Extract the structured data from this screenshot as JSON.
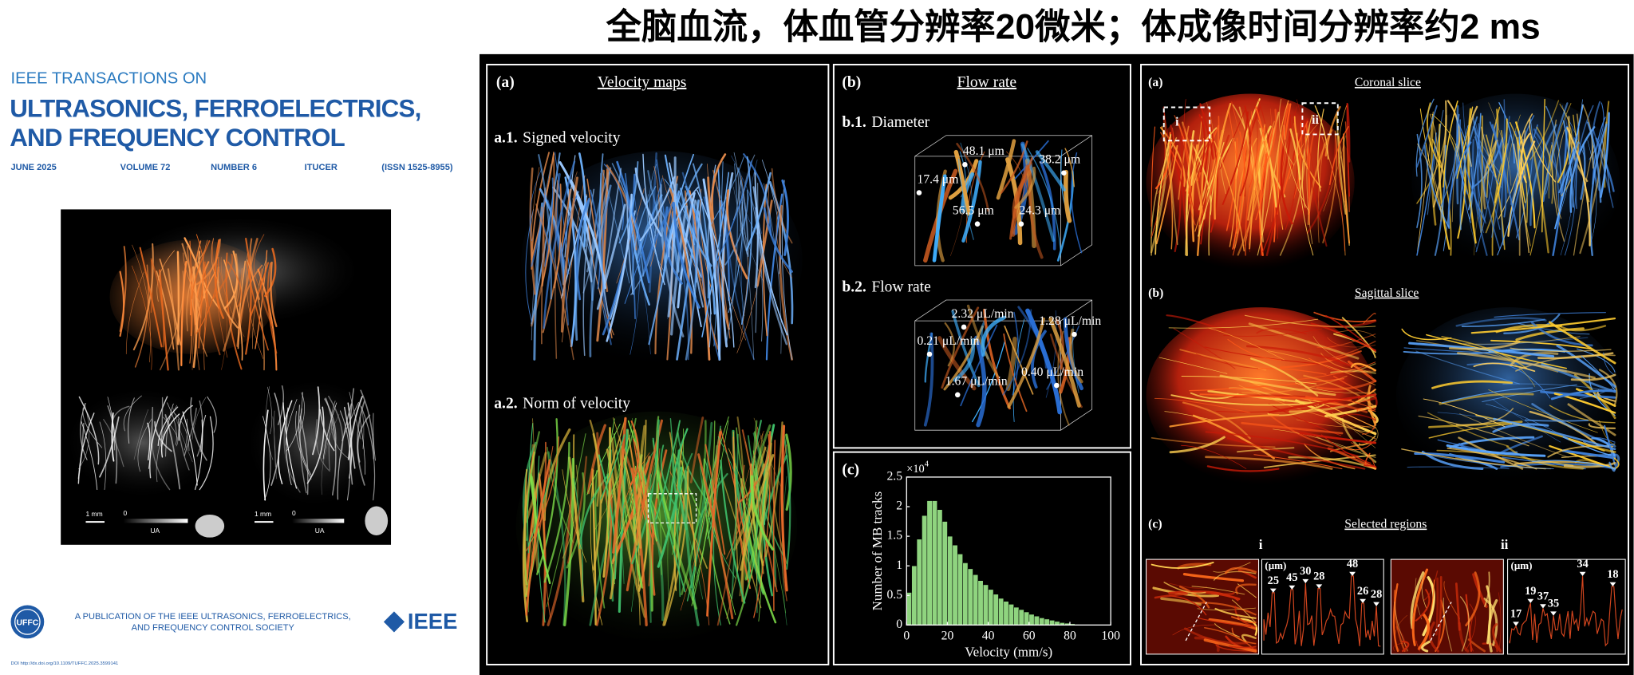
{
  "title": "全脑血流，体血管分辨率20微米；体成像时间分辨率约2 ms",
  "cover": {
    "series_label": "IEEE TRANSACTIONS ON",
    "journal_lines": [
      "ULTRASONICS, FERROELECTRICS,",
      "AND FREQUENCY CONTROL"
    ],
    "issue": [
      "JUNE 2025",
      "VOLUME 72",
      "NUMBER 6",
      "ITUCER",
      "(ISSN 1525-8955)"
    ],
    "image_labels": {
      "scale_left": "1 mm",
      "zero_left": "0",
      "unit_left": "UA",
      "scale_right": "1 mm",
      "zero_right": "0",
      "unit_right": "UA"
    },
    "logo_left": "UFFC",
    "publisher_lines": [
      "A PUBLICATION OF THE IEEE ULTRASONICS, FERROELECTRICS,",
      "AND FREQUENCY CONTROL SOCIETY"
    ],
    "logo_right": "IEEE",
    "doi": "DOI http://dx.doi.org/10.1109/TUFFC.2025.3599141"
  },
  "figure_left": {
    "a": {
      "label": "(a)",
      "title": "Velocity maps",
      "a1_label": "a.1.",
      "a1_text": "Signed velocity",
      "a2_label": "a.2.",
      "a2_text": "Norm of velocity"
    },
    "b": {
      "label": "(b)",
      "title": "Flow rate",
      "b1_label": "b.1.",
      "b1_text": "Diameter",
      "b2_label": "b.2.",
      "b2_text": "Flow rate",
      "diameters": [
        "48.1 μm",
        "38.2 μm",
        "17.4 μm",
        "56.5 μm",
        "24.3 μm"
      ],
      "flow_rates": [
        "2.32 μL/min",
        "1.28 μL/min",
        "0.21 μL/min",
        "0.40 μL/min",
        "1.67 μL/min"
      ]
    },
    "c": {
      "label": "(c)"
    }
  },
  "figure_right": {
    "panel_labels": [
      "(a)",
      "(b)",
      "(c)"
    ],
    "titles": [
      "Coronal slice",
      "Sagittal slice",
      "Selected regions"
    ],
    "box_labels": [
      "i",
      "ii"
    ],
    "regions": [
      {
        "label": "i",
        "unit": "(μm)",
        "peaks": [
          25,
          45,
          30,
          28,
          48,
          26,
          28
        ]
      },
      {
        "label": "ii",
        "unit": "(μm)",
        "peaks": [
          17,
          19,
          37,
          35,
          34,
          18
        ]
      }
    ]
  },
  "chart_data": {
    "type": "histogram",
    "xlabel": "Velocity (mm/s)",
    "ylabel": "Number of MB tracks",
    "y_scale_base": "×10",
    "y_scale_exponent": "4",
    "bins": [
      0,
      2.5,
      5,
      7.5,
      10,
      12.5,
      15,
      17.5,
      20,
      22.5,
      25,
      27.5,
      30,
      32.5,
      35,
      37.5,
      40,
      42.5,
      45,
      47.5,
      50,
      52.5,
      55,
      57.5,
      60,
      62.5,
      65,
      67.5,
      70,
      72.5,
      75,
      77.5,
      80,
      82.5,
      85
    ],
    "values": [
      0.55,
      1.0,
      1.45,
      1.85,
      2.1,
      2.1,
      1.95,
      1.75,
      1.5,
      1.35,
      1.2,
      1.05,
      0.95,
      0.85,
      0.75,
      0.68,
      0.6,
      0.52,
      0.45,
      0.4,
      0.35,
      0.3,
      0.26,
      0.22,
      0.18,
      0.15,
      0.12,
      0.1,
      0.08,
      0.06,
      0.04,
      0.03,
      0.02,
      0.01
    ],
    "color": "#8fd47f",
    "xlim": [
      0,
      100
    ],
    "xticks": [
      0,
      20,
      40,
      60,
      80,
      100
    ],
    "ylim": [
      0,
      2.5
    ],
    "yticks": [
      0,
      0.5,
      1,
      1.5,
      2,
      2.5
    ]
  }
}
